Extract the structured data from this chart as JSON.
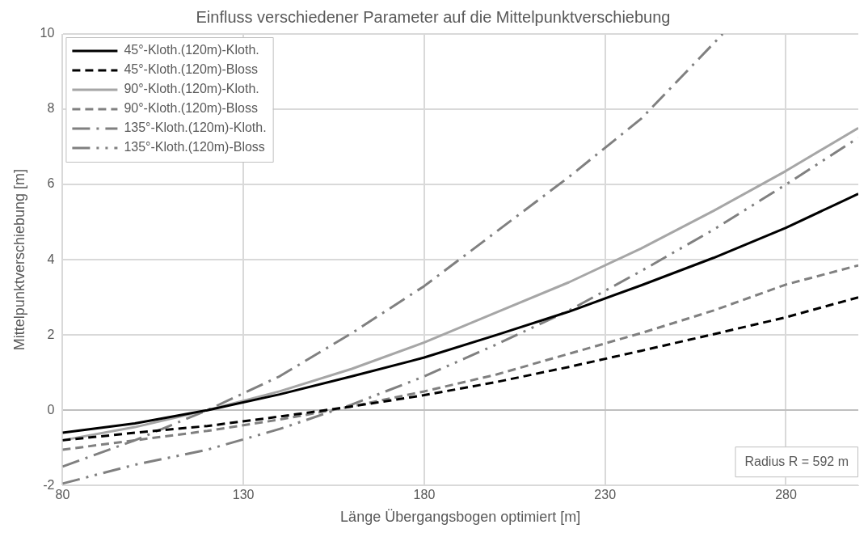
{
  "chart_data": {
    "type": "line",
    "title": "Einfluss verschiedener Parameter auf die Mittelpunktverschiebung",
    "xlabel": "Länge Übergangsbogen optimiert [m]",
    "ylabel": "Mittelpunktverschiebung [m]",
    "x": [
      80,
      100,
      120,
      140,
      160,
      180,
      200,
      220,
      240,
      260,
      280,
      300
    ],
    "series": [
      {
        "name": "45°-Kloth.(120m)-Kloth.",
        "color": "#000000",
        "line_style": "solid",
        "values": [
          -0.6,
          -0.35,
          0,
          0.42,
          0.9,
          1.4,
          2.0,
          2.62,
          3.32,
          4.05,
          4.85,
          5.75
        ]
      },
      {
        "name": "45°-Kloth.(120m)-Bloss",
        "color": "#000000",
        "line_style": "dashed",
        "values": [
          -0.8,
          -0.6,
          -0.42,
          -0.17,
          0.1,
          0.4,
          0.75,
          1.15,
          1.58,
          2.02,
          2.47,
          3.0
        ]
      },
      {
        "name": "90°-Kloth.(120m)-Kloth.",
        "color": "#a6a6a6",
        "line_style": "solid",
        "values": [
          -0.8,
          -0.45,
          0,
          0.5,
          1.1,
          1.8,
          2.6,
          3.4,
          4.3,
          5.3,
          6.36,
          7.5
        ]
      },
      {
        "name": "90°-Kloth.(120m)-Bloss",
        "color": "#808080",
        "line_style": "dashed",
        "values": [
          -1.05,
          -0.8,
          -0.55,
          -0.25,
          0.1,
          0.5,
          0.95,
          1.5,
          2.05,
          2.65,
          3.34,
          3.85
        ]
      },
      {
        "name": "135°-Kloth.(120m)-Kloth.",
        "color": "#808080",
        "line_style": "dashdot",
        "x": [
          80,
          100,
          120,
          140,
          160,
          180,
          200,
          220,
          240,
          262.5
        ],
        "values": [
          -1.5,
          -0.8,
          0,
          0.9,
          2.05,
          3.3,
          4.75,
          6.2,
          7.75,
          10
        ]
      },
      {
        "name": "135°-Kloth.(120m)-Bloss",
        "color": "#808080",
        "line_style": "dashdotdot",
        "values": [
          -1.95,
          -1.45,
          -1.05,
          -0.5,
          0.15,
          0.9,
          1.75,
          2.65,
          3.7,
          4.8,
          6.0,
          7.24
        ]
      }
    ],
    "xlim": [
      80,
      300
    ],
    "xticks": [
      80,
      130,
      180,
      230,
      280
    ],
    "ylim": [
      -2,
      10
    ],
    "yticks": [
      -2,
      0,
      2,
      4,
      6,
      8,
      10
    ],
    "grid": true,
    "legend": "top left",
    "marker": "none",
    "annotations": [
      "Radius R = 592 m"
    ]
  }
}
